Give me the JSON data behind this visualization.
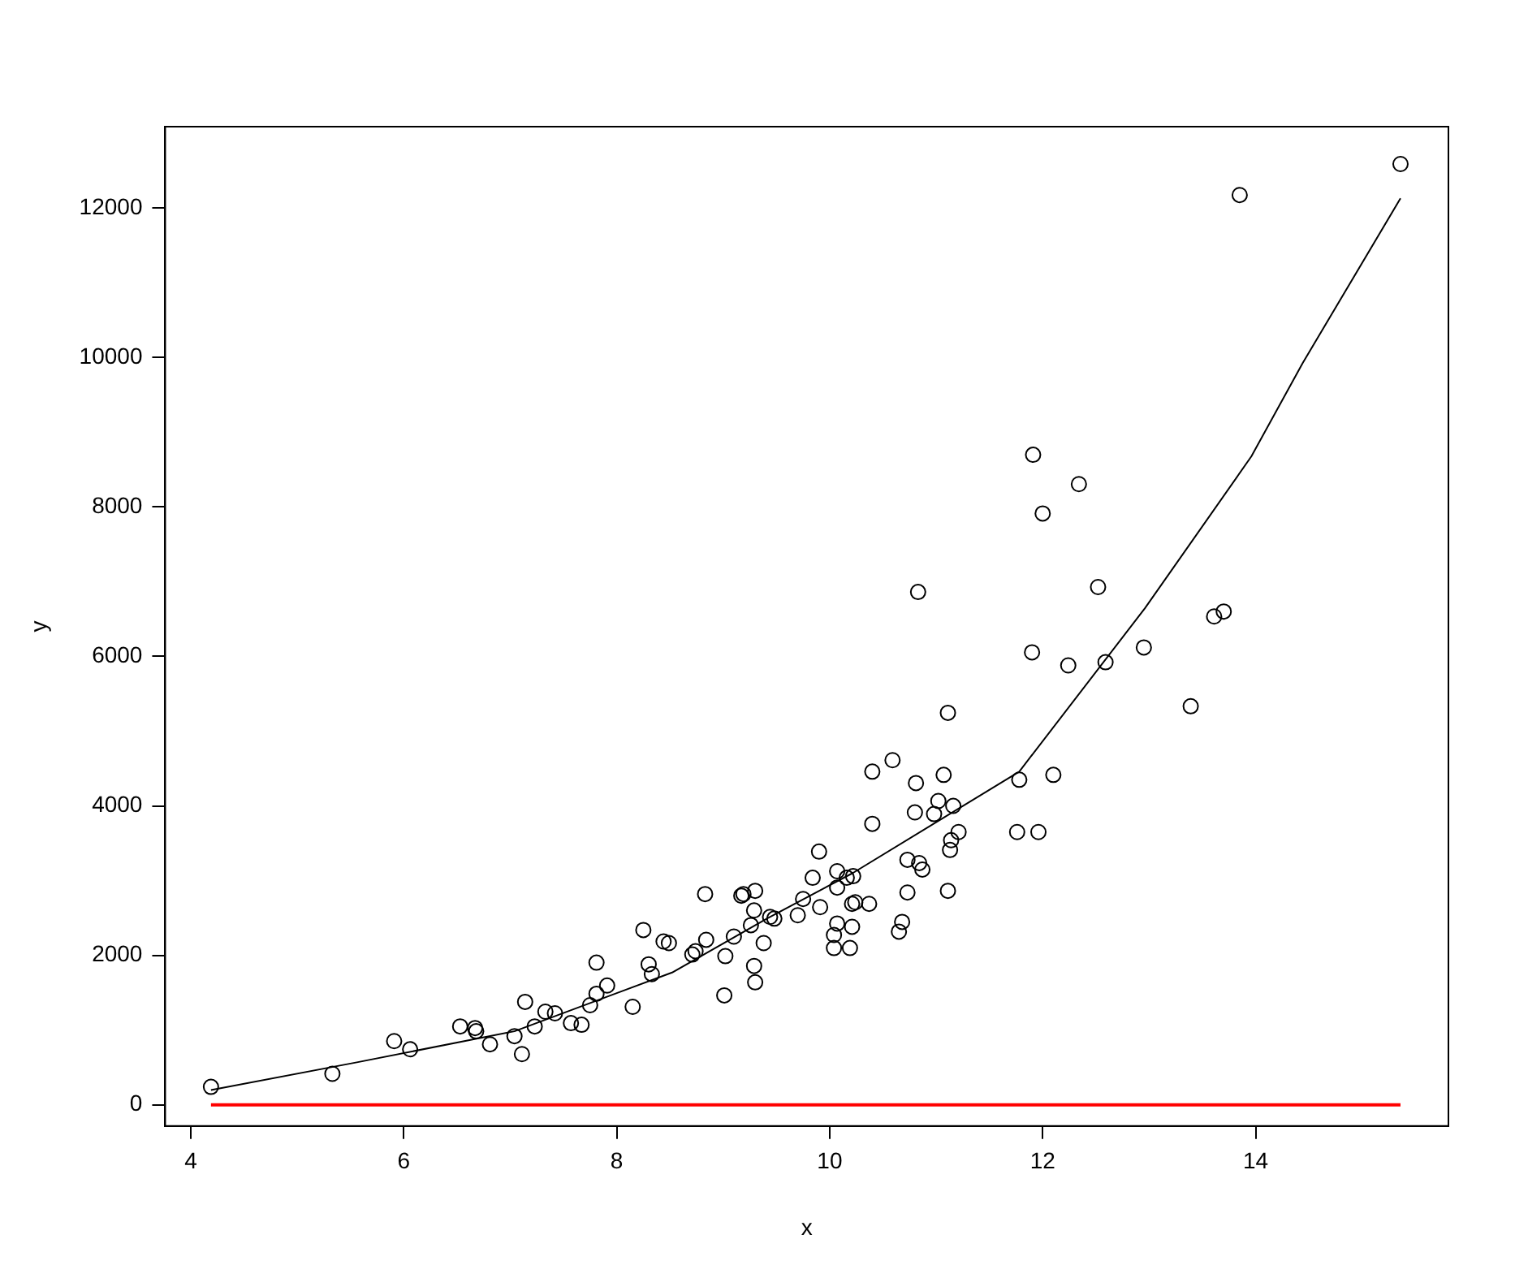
{
  "chart_data": {
    "type": "scatter",
    "xlabel": "x",
    "ylabel": "y",
    "xlim": [
      3.76,
      15.81
    ],
    "ylim": [
      -284,
      13090
    ],
    "xticks": [
      4,
      6,
      8,
      10,
      12,
      14
    ],
    "yticks": [
      0,
      2000,
      4000,
      6000,
      8000,
      10000,
      12000
    ],
    "series": [
      {
        "type": "scatter",
        "marker": "circle",
        "color": "#000000",
        "x": [
          4.19,
          5.33,
          5.91,
          6.06,
          6.53,
          6.67,
          6.68,
          6.81,
          7.04,
          7.11,
          7.14,
          7.23,
          7.33,
          7.42,
          7.57,
          7.67,
          7.75,
          7.81,
          7.81,
          7.91,
          8.15,
          8.25,
          8.3,
          8.33,
          8.44,
          8.49,
          8.71,
          8.74,
          8.83,
          8.84,
          9.01,
          9.02,
          9.1,
          9.17,
          9.19,
          9.26,
          9.29,
          9.29,
          9.3,
          9.3,
          9.38,
          9.44,
          9.48,
          9.7,
          9.75,
          9.84,
          9.9,
          9.91,
          10.04,
          10.04,
          10.07,
          10.07,
          10.07,
          10.16,
          10.19,
          10.21,
          10.21,
          10.22,
          10.24,
          10.37,
          10.4,
          10.4,
          10.59,
          10.65,
          10.68,
          10.73,
          10.73,
          10.8,
          10.81,
          10.83,
          10.84,
          10.87,
          10.98,
          11.02,
          11.07,
          11.11,
          11.11,
          11.13,
          11.14,
          11.16,
          11.21,
          11.76,
          11.78,
          11.9,
          11.91,
          11.96,
          12.0,
          12.1,
          12.24,
          12.34,
          12.52,
          12.59,
          12.95,
          13.39,
          13.61,
          13.7,
          13.85,
          15.36
        ],
        "values": [
          240,
          415,
          852,
          743,
          1049,
          1027,
          984,
          809,
          918,
          678,
          1377,
          1049,
          1246,
          1224,
          1093,
          1071,
          1333,
          1902,
          1486,
          1596,
          1311,
          2339,
          1880,
          1749,
          2186,
          2164,
          2011,
          2055,
          2820,
          2208,
          1464,
          1989,
          2251,
          2798,
          2820,
          2404,
          2601,
          1858,
          1639,
          2863,
          2164,
          2514,
          2492,
          2536,
          2754,
          3038,
          3388,
          2645,
          2273,
          2098,
          2426,
          2907,
          3126,
          3038,
          2098,
          2382,
          2689,
          3060,
          2710,
          2689,
          3760,
          4459,
          4612,
          2317,
          2448,
          2841,
          3279,
          3913,
          4306,
          6863,
          3235,
          3148,
          3891,
          4066,
          4415,
          5246,
          2863,
          3410,
          3541,
          4000,
          3650,
          3650,
          4350,
          6055,
          8699,
          3650,
          7913,
          4415,
          5880,
          8306,
          6929,
          5923,
          6120,
          5333,
          6535,
          6601,
          12175,
          12590
        ]
      },
      {
        "type": "line",
        "marker": "none",
        "color": "#000000",
        "x": [
          4.19,
          5.56,
          7.04,
          8.52,
          9.41,
          10.22,
          11.78,
          12.96,
          13.96,
          14.44,
          15.36
        ],
        "values": [
          197,
          568,
          984,
          1770,
          2492,
          3104,
          4459,
          6645,
          8678,
          9923,
          12131
        ]
      },
      {
        "type": "line",
        "marker": "none",
        "color": "#ff0000",
        "x": [
          4.19,
          15.36
        ],
        "values": [
          0,
          0
        ]
      }
    ]
  }
}
